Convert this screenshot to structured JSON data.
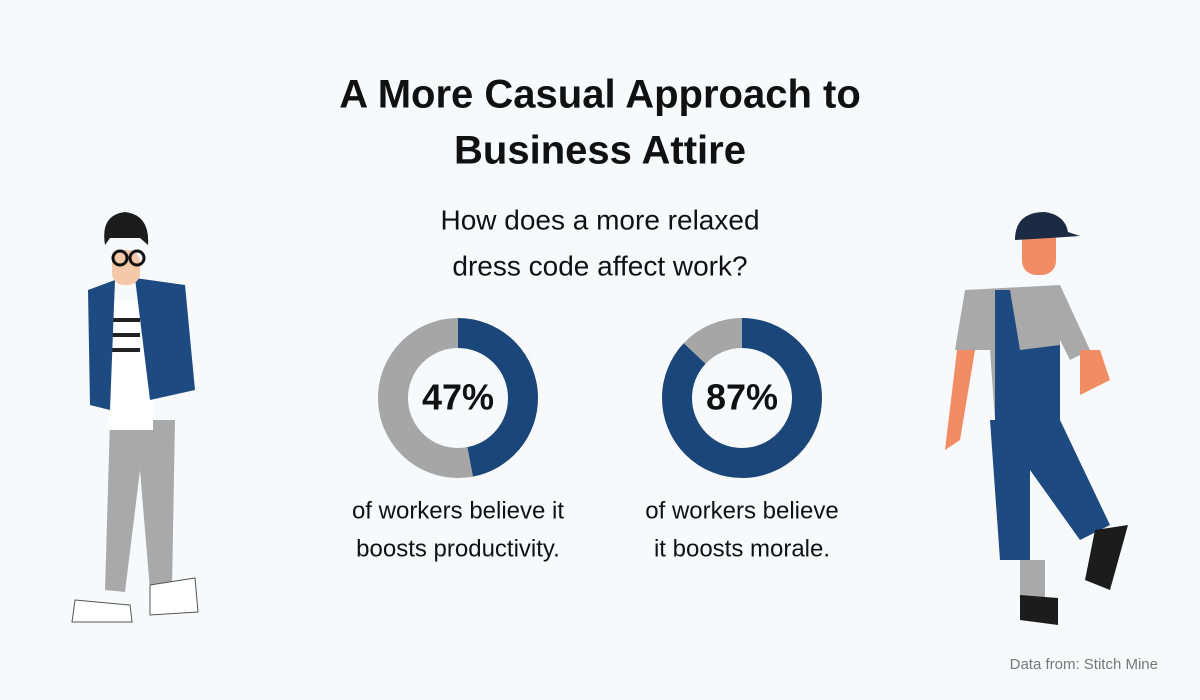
{
  "title": [
    "A More Casual Approach to",
    "Business Attire"
  ],
  "subtitle": [
    "How does a more relaxed",
    "dress code affect work?"
  ],
  "source": "Data from: Stitch Mine",
  "chart_data": [
    {
      "type": "donut",
      "values": [
        47,
        53
      ],
      "value_labels": [
        "47%",
        null
      ],
      "colors": [
        "#1a4679",
        "#a6a6a6"
      ],
      "caption": [
        "of workers believe it",
        "boosts productivity."
      ]
    },
    {
      "type": "donut",
      "values": [
        87,
        13
      ],
      "value_labels": [
        "87%",
        null
      ],
      "colors": [
        "#1a4679",
        "#a6a6a6"
      ],
      "caption": [
        "of workers believe",
        "it boosts morale."
      ]
    }
  ]
}
